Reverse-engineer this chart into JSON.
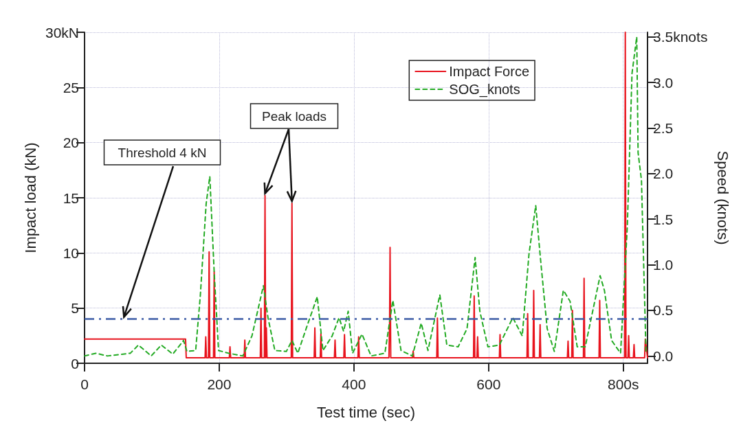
{
  "chart_data": {
    "type": "line",
    "xlabel": "Test time (sec)",
    "ylabel": "Impact load (kN)",
    "y2label": "Speed (knots)",
    "xlim": [
      0,
      836
    ],
    "xticks": [
      0,
      200,
      400,
      600,
      {
        "value": 800,
        "label": "800s"
      }
    ],
    "ylim": [
      0,
      30
    ],
    "yticks": [
      0,
      5,
      10,
      15,
      20,
      25,
      {
        "value": 30,
        "label": "30kN"
      }
    ],
    "y2lim": [
      -0.08,
      3.55
    ],
    "y2ticks": [
      {
        "value": 0,
        "label": "0.0"
      },
      {
        "value": 0.5,
        "label": "0.5"
      },
      {
        "value": 1,
        "label": "1.0"
      },
      {
        "value": 1.5,
        "label": "1.5"
      },
      {
        "value": 2,
        "label": "2.0"
      },
      {
        "value": 2.5,
        "label": "2.5"
      },
      {
        "value": 3,
        "label": "3.0"
      },
      {
        "value": 3.5,
        "label": "3.5knots"
      }
    ],
    "grid": true,
    "legend": "top right",
    "series": [
      {
        "name": "Impact Force",
        "color": "#e8141e",
        "line_style": "solid",
        "x": [
          0,
          150,
          151,
          179,
          180,
          181,
          184,
          185,
          186,
          191.5,
          192.5,
          193.5,
          215,
          216,
          217,
          237,
          238,
          239,
          261,
          262,
          263,
          267,
          268,
          269,
          270,
          271,
          307,
          308,
          309,
          341,
          342,
          343,
          350,
          351,
          352,
          371,
          372,
          373,
          385,
          386,
          387,
          406,
          407,
          408,
          452,
          453,
          453.7,
          454.7,
          487,
          488,
          489,
          523,
          524,
          525,
          577.6,
          578.6,
          579.6,
          582.7,
          583.7,
          584.7,
          616,
          617,
          618,
          657,
          658,
          659,
          666,
          667,
          668,
          675.5,
          676.5,
          677.5,
          717,
          718,
          719,
          723.5,
          724.5,
          725.5,
          740.8,
          741.8,
          742.8,
          764,
          765,
          766,
          802,
          803,
          804,
          807,
          808,
          809,
          815,
          816,
          817,
          831.7,
          832.7,
          836
        ],
        "values": [
          2.2,
          2.2,
          0.5,
          0.5,
          2.4,
          0.5,
          0.5,
          10.1,
          0.5,
          0.5,
          8.3,
          0.5,
          0.5,
          1.5,
          0.5,
          0.5,
          2.1,
          0.5,
          0.5,
          5.0,
          0.5,
          0.5,
          15.2,
          0.5,
          3.2,
          0.5,
          0.5,
          14.5,
          0.5,
          0.5,
          3.2,
          0.5,
          0.5,
          2.7,
          0.5,
          0.5,
          2.1,
          0.5,
          0.5,
          2.6,
          0.5,
          0.5,
          2.4,
          0.5,
          0.5,
          3.7,
          10.5,
          0.5,
          0.5,
          1.1,
          0.5,
          0.5,
          4.1,
          0.5,
          0.5,
          6.1,
          0.5,
          0.5,
          2.4,
          0.5,
          0.5,
          2.6,
          0.5,
          0.5,
          4.5,
          0.5,
          0.5,
          6.6,
          0.5,
          0.5,
          3.5,
          0.5,
          0.5,
          2.0,
          0.5,
          0.5,
          4.8,
          0.5,
          0.5,
          7.7,
          0.5,
          0.5,
          5.7,
          0.5,
          0.5,
          30,
          0.5,
          0.5,
          2.5,
          0.5,
          0.5,
          1.7,
          0.5,
          0.5,
          2.2,
          0.5
        ]
      },
      {
        "name": "SOG_knots",
        "color": "#22aa22",
        "line_style": "dashed",
        "axis": "y2",
        "x": [
          0,
          17,
          34,
          68,
          80,
          99,
          114,
          131,
          147,
          152,
          165,
          172,
          180.6,
          186,
          192.5,
          199,
          214,
          235,
          248.6,
          265.6,
          272.4,
          282.6,
          299.7,
          308,
          316.7,
          330,
          345.6,
          354,
          367.7,
          377.9,
          384.7,
          391.5,
          398,
          412,
          425.5,
          446,
          457.8,
          470,
          486.7,
          500,
          510,
          527.6,
          538,
          554.8,
          568,
          580,
          587,
          599,
          616,
          636,
          650,
          660,
          670,
          677,
          687,
          697.6,
          711,
          721,
          731.6,
          743.5,
          765.6,
          772,
          782.7,
          796,
          806,
          813,
          820,
          822,
          827,
          833.7
        ],
        "values": [
          0.0,
          0.03,
          0.0,
          0.03,
          0.12,
          0.0,
          0.12,
          0.02,
          0.17,
          0.05,
          0.06,
          0.67,
          1.67,
          1.97,
          0.92,
          0.06,
          0.03,
          0.0,
          0.22,
          0.77,
          0.42,
          0.06,
          0.05,
          0.17,
          0.03,
          0.32,
          0.65,
          0.06,
          0.22,
          0.42,
          0.27,
          0.49,
          0.03,
          0.24,
          0.0,
          0.03,
          0.61,
          0.06,
          0.0,
          0.36,
          0.06,
          0.67,
          0.12,
          0.1,
          0.3,
          1.08,
          0.49,
          0.1,
          0.12,
          0.42,
          0.22,
          1.12,
          1.65,
          1.07,
          0.3,
          0.05,
          0.72,
          0.6,
          0.1,
          0.1,
          0.88,
          0.72,
          0.17,
          0.03,
          1.42,
          3.1,
          3.5,
          2.23,
          1.93,
          0.05
        ]
      }
    ],
    "ref_lines": [
      {
        "axis": "y",
        "value": 4,
        "label": "Threshold 4 kN",
        "color": "#3b5ba5",
        "line_style": "dashed"
      }
    ],
    "annotations": [
      {
        "text": "Peak loads",
        "x": 268,
        "y": 15.2
      }
    ]
  }
}
